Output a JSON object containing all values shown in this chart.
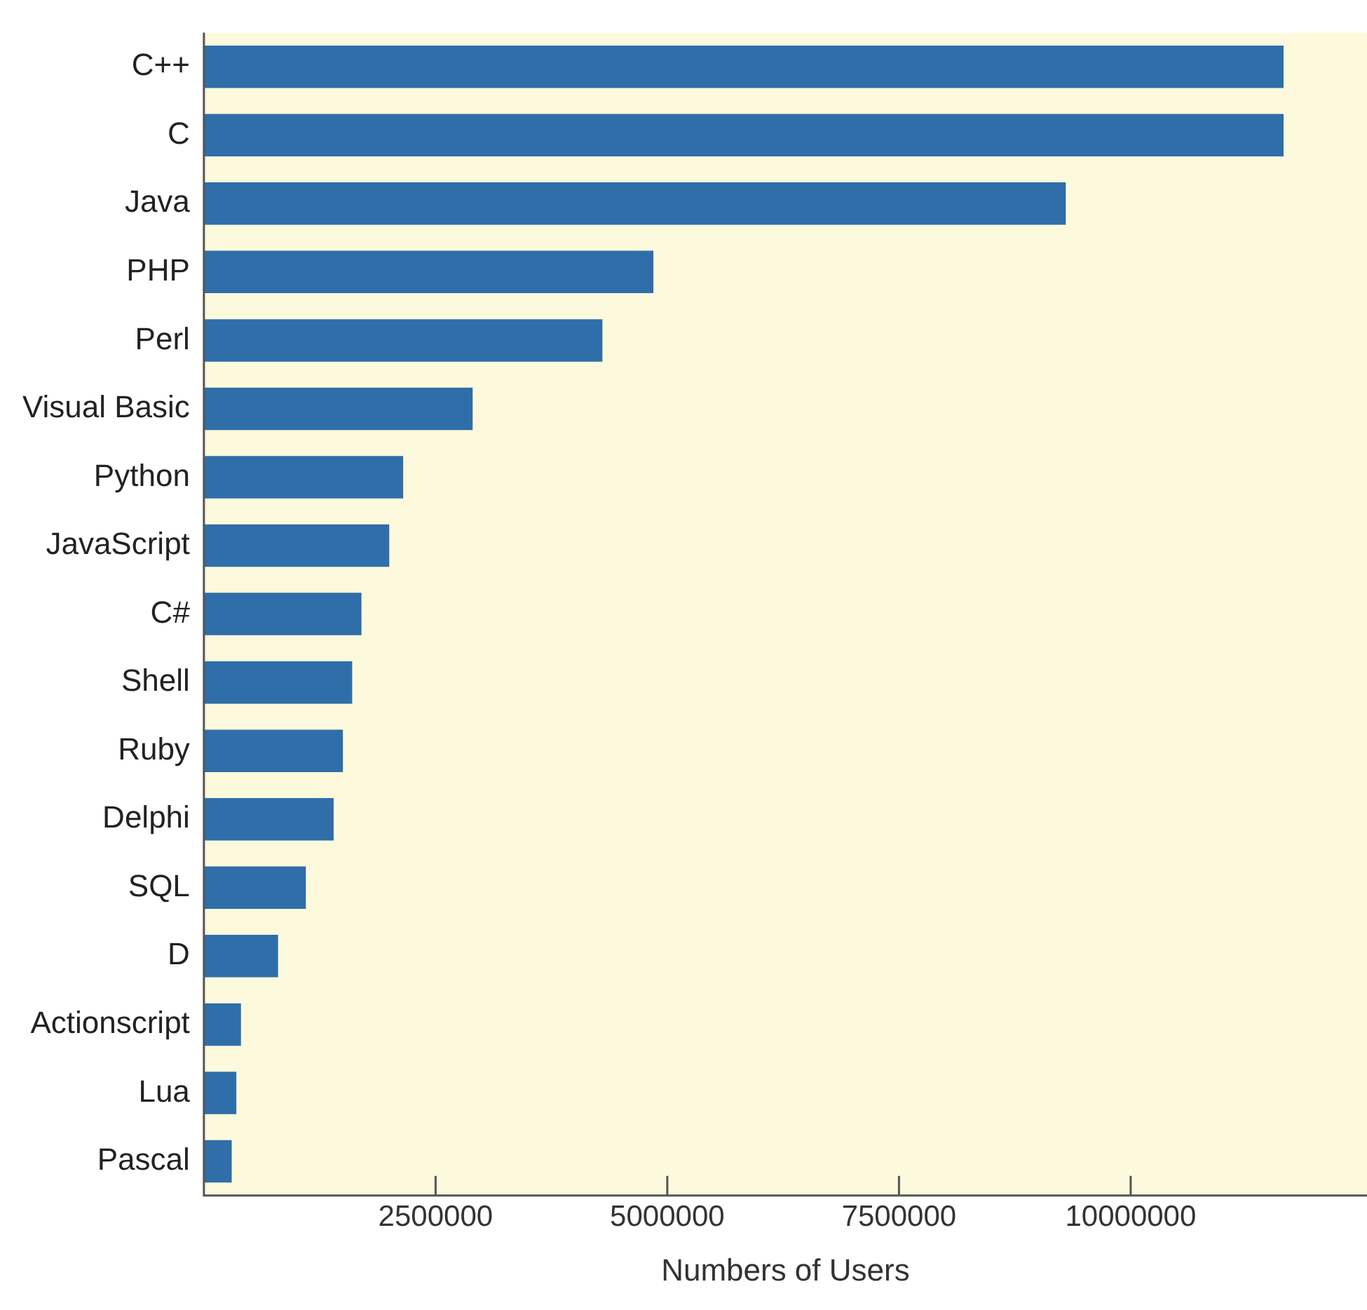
{
  "chart_data": {
    "type": "bar",
    "orientation": "horizontal",
    "xlabel": "Numbers of Users",
    "categories": [
      "C++",
      "C",
      "Java",
      "PHP",
      "Perl",
      "Visual Basic",
      "Python",
      "JavaScript",
      "C#",
      "Shell",
      "Ruby",
      "Delphi",
      "SQL",
      "D",
      "Actionscript",
      "Lua",
      "Pascal"
    ],
    "values": [
      11650000,
      11650000,
      9300000,
      4850000,
      4300000,
      2900000,
      2150000,
      2000000,
      1700000,
      1600000,
      1500000,
      1400000,
      1100000,
      800000,
      400000,
      350000,
      300000
    ],
    "color": "#2f6ea8",
    "xlim": [
      0,
      12550000
    ],
    "xticks": [
      2500000,
      5000000,
      7500000,
      10000000
    ],
    "grid": false,
    "legend": false
  }
}
